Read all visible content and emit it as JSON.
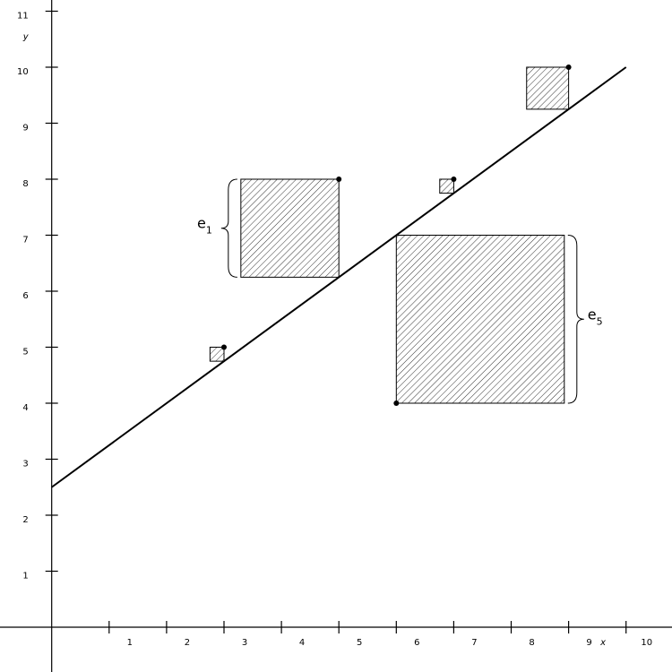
{
  "chart_data": {
    "type": "scatter",
    "title": "",
    "xlabel": "x",
    "ylabel": "y",
    "xlim": [
      -0.9,
      10.8
    ],
    "ylim": [
      -0.8,
      11.2
    ],
    "x_ticks": [
      1,
      2,
      3,
      4,
      5,
      6,
      7,
      8,
      9,
      10
    ],
    "y_ticks": [
      1,
      2,
      3,
      4,
      5,
      6,
      7,
      8,
      9,
      10,
      11
    ],
    "grid": false,
    "points": [
      {
        "x": 3,
        "y": 5
      },
      {
        "x": 5,
        "y": 8
      },
      {
        "x": 6,
        "y": 4
      },
      {
        "x": 7,
        "y": 8
      },
      {
        "x": 9,
        "y": 10
      }
    ],
    "regression_line": {
      "intercept": 2.5,
      "slope": 0.75,
      "x_range": [
        0,
        10
      ]
    },
    "residual_squares": "shaded square on each point with side equal to |residual|",
    "residual_labels": [
      {
        "base": "e",
        "sub": "1",
        "point_index": 1
      },
      {
        "base": "e",
        "sub": "5",
        "point_index": 2
      }
    ]
  }
}
